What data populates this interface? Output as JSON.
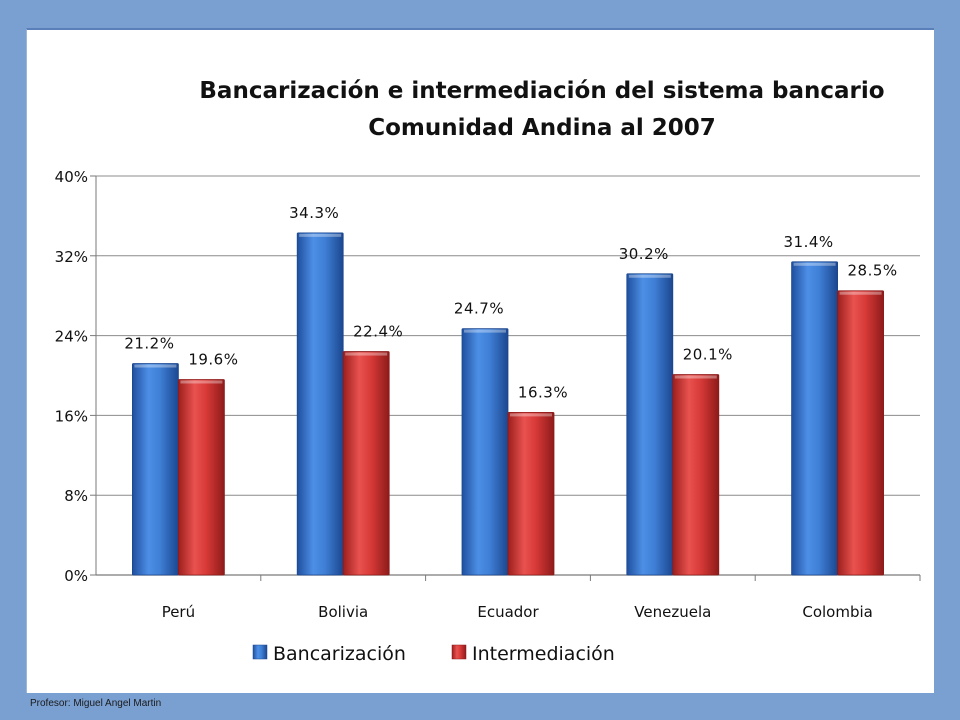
{
  "footer": {
    "text": "Profesor: Miguel Angel Martin"
  },
  "colors": {
    "bancarizacion": "#3f7fd6",
    "intermediacion": "#d83a38"
  },
  "chart_data": {
    "type": "bar",
    "title": "Bancarización e intermediación del sistema bancario",
    "subtitle": "Comunidad Andina al 2007",
    "categories": [
      "Perú",
      "Bolivia",
      "Ecuador",
      "Venezuela",
      "Colombia"
    ],
    "series": [
      {
        "name": "Bancarización",
        "values": [
          21.2,
          34.3,
          24.7,
          30.2,
          31.4
        ],
        "labels": [
          "21.2%",
          "34.3%",
          "24.7%",
          "30.2%",
          "31.4%"
        ]
      },
      {
        "name": "Intermediación",
        "values": [
          19.6,
          22.4,
          16.3,
          20.1,
          28.5
        ],
        "labels": [
          "19.6%",
          "22.4%",
          "16.3%",
          "20.1%",
          "28.5%"
        ]
      }
    ],
    "yticks": [
      "0%",
      "8%",
      "16%",
      "24%",
      "32%",
      "40%"
    ],
    "ylim": [
      0,
      40
    ],
    "xlabel": "",
    "ylabel": "",
    "grid": true,
    "legend": "bottom"
  }
}
